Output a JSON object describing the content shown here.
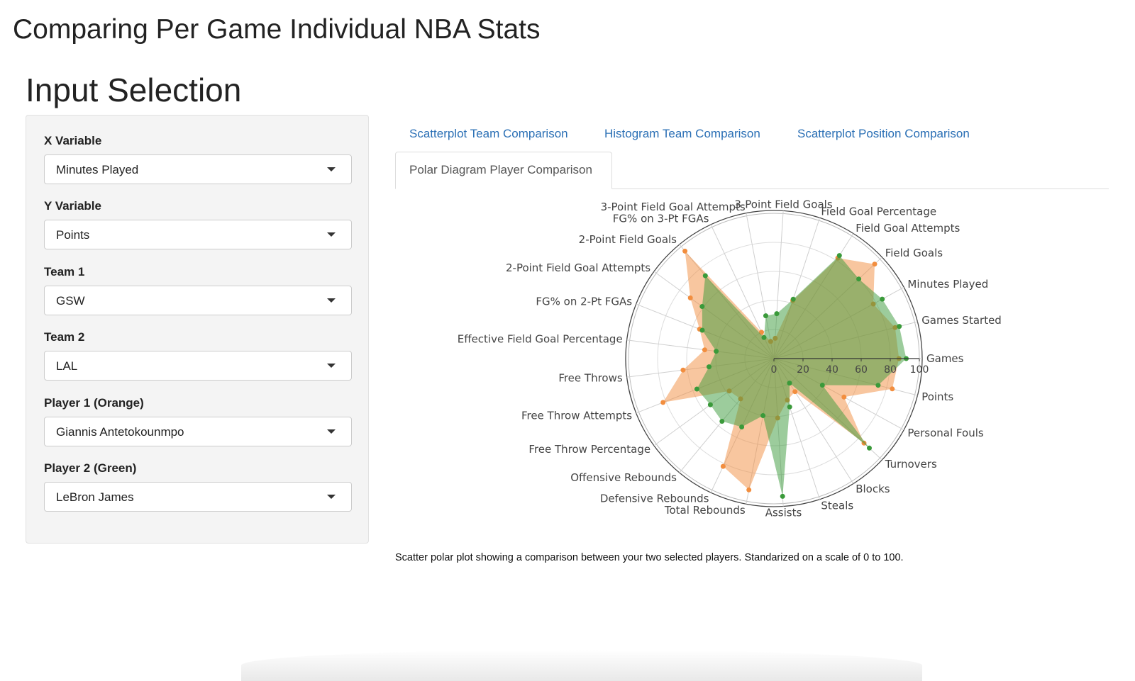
{
  "app_title": "Comparing Per Game Individual NBA Stats",
  "sidebar": {
    "heading": "Input Selection",
    "fields": [
      {
        "label": "X Variable",
        "value": "Minutes Played"
      },
      {
        "label": "Y Variable",
        "value": "Points"
      },
      {
        "label": "Team 1",
        "value": "GSW"
      },
      {
        "label": "Team 2",
        "value": "LAL"
      },
      {
        "label": "Player 1 (Orange)",
        "value": "Giannis Antetokounmpo"
      },
      {
        "label": "Player 2 (Green)",
        "value": "LeBron James"
      }
    ]
  },
  "tabs": [
    {
      "label": "Scatterplot Team Comparison",
      "active": false
    },
    {
      "label": "Histogram Team Comparison",
      "active": false
    },
    {
      "label": "Scatterplot Position Comparison",
      "active": false
    },
    {
      "label": "Polar Diagram Player Comparison",
      "active": true
    }
  ],
  "caption": "Scatter polar plot showing a comparison between your two selected players. Standarized on a scale of 0 to 100.",
  "colors": {
    "orange": "#f28e3f",
    "green": "#3a9a3a",
    "tab_link": "#2a6fb5"
  },
  "chart_data": {
    "type": "scatterpolar",
    "radial_range": [
      0,
      100
    ],
    "radial_ticks": [
      "0",
      "20",
      "40",
      "60",
      "80",
      "100"
    ],
    "categories": [
      "Games",
      "Games Started",
      "Minutes Played",
      "Field Goals",
      "Field Goal Attempts",
      "Field Goal Percentage",
      "3-Point Field Goals",
      "3-Point Field Goal Attempts",
      "FG% on 3-Pt FGAs",
      "2-Point Field Goals",
      "2-Point Field Goal Attempts",
      "FG% on 2-Pt FGAs",
      "Effective Field Goal Percentage",
      "Free Throws",
      "Free Throw Attempts",
      "Free Throw Percentage",
      "Offensive Rebounds",
      "Defensive Rebounds",
      "Total Rebounds",
      "Assists",
      "Steals",
      "Blocks",
      "Turnovers",
      "Personal Fouls",
      "Points"
    ],
    "series": [
      {
        "name": "Giannis Antetokounmpo",
        "values": [
          86,
          86,
          78,
          95,
          82,
          42,
          14,
          12,
          20,
          96,
          71,
          55,
          48,
          63,
          82,
          38,
          36,
          82,
          92,
          41,
          30,
          27,
          85,
          55,
          84
        ]
      },
      {
        "name": "LeBron James",
        "values": [
          91,
          89,
          85,
          80,
          84,
          43,
          31,
          30,
          16,
          74,
          61,
          53,
          40,
          45,
          57,
          54,
          56,
          52,
          40,
          95,
          35,
          20,
          90,
          38,
          74
        ]
      }
    ]
  }
}
